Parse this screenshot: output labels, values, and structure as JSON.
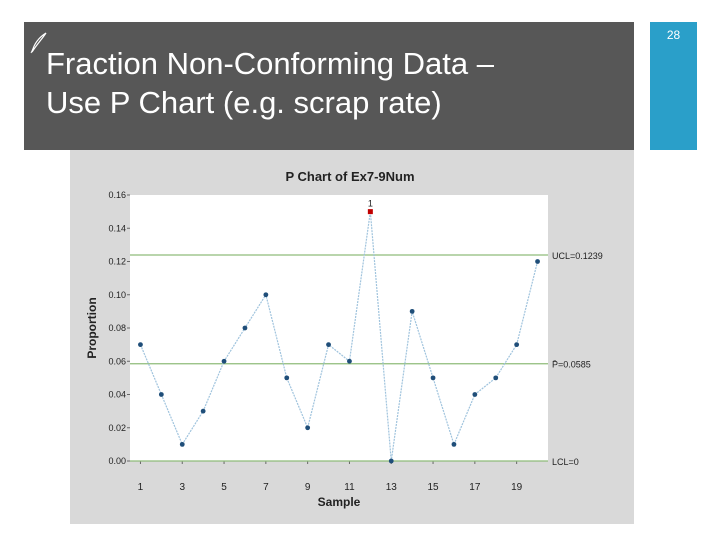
{
  "slide": {
    "title_line1": "Fraction Non-Conforming Data –",
    "title_line2": "Use P Chart (e.g. scrap rate)",
    "number": "28",
    "colors": {
      "title_bar": "#575757",
      "accent_bar": "#2a9fc9",
      "chart_panel": "#d9d9d9"
    },
    "icons": [
      "leaf-icon"
    ]
  },
  "chart_data": {
    "type": "line",
    "title": "P Chart of Ex7-9Num",
    "xlabel": "Sample",
    "ylabel": "Proportion",
    "x": [
      1,
      2,
      3,
      4,
      5,
      6,
      7,
      8,
      9,
      10,
      11,
      12,
      13,
      14,
      15,
      16,
      17,
      18,
      19,
      20
    ],
    "series": [
      {
        "values": [
          0.07,
          0.04,
          0.01,
          0.03,
          0.06,
          0.08,
          0.1,
          0.05,
          0.02,
          0.07,
          0.06,
          0.15,
          0.0,
          0.09,
          0.05,
          0.01,
          0.04,
          0.05,
          0.07,
          0.12
        ]
      }
    ],
    "ylim": [
      0,
      0.16
    ],
    "yticks": [
      "0.00",
      "0.02",
      "0.04",
      "0.06",
      "0.08",
      "0.10",
      "0.12",
      "0.14",
      "0.16"
    ],
    "xticks": [
      "1",
      "3",
      "5",
      "7",
      "9",
      "11",
      "13",
      "15",
      "17",
      "19"
    ],
    "reference_lines": [
      {
        "label": "UCL=0.1239",
        "value": 0.1239
      },
      {
        "label": "P̄=0.0585",
        "value": 0.0585
      },
      {
        "label": "LCL=0",
        "value": 0
      }
    ],
    "out_of_control": [
      {
        "x": 12,
        "label": "1"
      }
    ],
    "colors": {
      "line": "#9fc3dd",
      "marker": "#1f4e79",
      "out_marker": "#c00000",
      "control_line": "#8fbc7a"
    },
    "grid": false
  }
}
